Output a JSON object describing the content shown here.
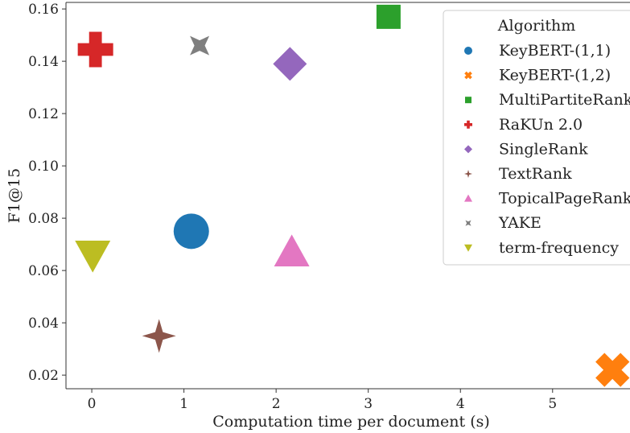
{
  "chart_data": {
    "type": "scatter",
    "xlabel": "Computation time per document (s)",
    "ylabel": "F1@15",
    "xlim": [
      -0.28,
      5.84
    ],
    "ylim": [
      0.0148,
      0.1625
    ],
    "xticks": [
      0,
      1,
      2,
      3,
      4,
      5
    ],
    "yticks": [
      0.02,
      0.04,
      0.06,
      0.08,
      0.1,
      0.12,
      0.14,
      0.16
    ],
    "ytick_labels": [
      "0.02",
      "0.04",
      "0.06",
      "0.08",
      "0.10",
      "0.12",
      "0.14",
      "0.16"
    ],
    "grid": false,
    "legend": {
      "title": "Algorithm",
      "placement": "top-right"
    },
    "series": [
      {
        "name": "KeyBERT-(1,1)",
        "color": "#1f77b4",
        "marker": "circle",
        "x": 1.08,
        "y": 0.075
      },
      {
        "name": "KeyBERT-(1,2)",
        "color": "#ff7f0e",
        "marker": "x",
        "x": 5.65,
        "y": 0.022
      },
      {
        "name": "MultiPartiteRank",
        "color": "#2ca02c",
        "marker": "square",
        "x": 3.22,
        "y": 0.157
      },
      {
        "name": "RaKUn 2.0",
        "color": "#d62728",
        "marker": "plus",
        "x": 0.04,
        "y": 0.1445
      },
      {
        "name": "SingleRank",
        "color": "#9467bd",
        "marker": "diamond",
        "x": 2.15,
        "y": 0.139
      },
      {
        "name": "TextRank",
        "color": "#8c564b",
        "marker": "star4",
        "x": 0.73,
        "y": 0.035
      },
      {
        "name": "TopicalPageRank",
        "color": "#e377c2",
        "marker": "triangle-up",
        "x": 2.17,
        "y": 0.067
      },
      {
        "name": "YAKE",
        "color": "#7f7f7f",
        "marker": "star4-thin",
        "x": 1.17,
        "y": 0.146
      },
      {
        "name": "term-frequency",
        "color": "#bcbd22",
        "marker": "triangle-down",
        "x": 0.01,
        "y": 0.066
      }
    ]
  }
}
